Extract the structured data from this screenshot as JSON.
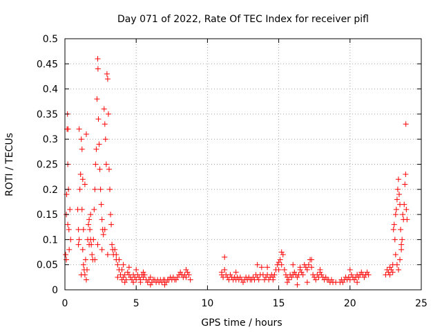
{
  "chart_data": {
    "type": "scatter",
    "title": "Day 071 of 2022, Rate Of TEC Index for receiver pifl",
    "xlabel": "GPS time / hours",
    "ylabel": "ROTI / TECUs",
    "xlim": [
      0,
      25
    ],
    "ylim": [
      0,
      0.5
    ],
    "x_ticks": [
      0,
      5,
      10,
      15,
      20,
      25
    ],
    "x_tick_labels": [
      "0",
      "5",
      "10",
      "15",
      "20",
      "25"
    ],
    "y_ticks": [
      0,
      0.05,
      0.1,
      0.15,
      0.2,
      0.25,
      0.3,
      0.35,
      0.4,
      0.45,
      0.5
    ],
    "y_tick_labels": [
      "0",
      "0.05",
      "0.1",
      "0.15",
      "0.2",
      "0.25",
      "0.3",
      "0.35",
      "0.4",
      "0.45",
      "0.5"
    ],
    "grid": true,
    "marker": "+",
    "color": "#ff0000",
    "series": [
      {
        "name": "ROTI",
        "points": [
          [
            0.05,
            0.07
          ],
          [
            0.1,
            0.15
          ],
          [
            0.12,
            0.19
          ],
          [
            0.15,
            0.32
          ],
          [
            0.18,
            0.35
          ],
          [
            0.2,
            0.25
          ],
          [
            0.22,
            0.32
          ],
          [
            0.25,
            0.2
          ],
          [
            0.28,
            0.12
          ],
          [
            0.3,
            0.08
          ],
          [
            0.35,
            0.16
          ],
          [
            0.4,
            0.1
          ],
          [
            0.1,
            0.06
          ],
          [
            0.2,
            0.13
          ],
          [
            0.9,
            0.16
          ],
          [
            0.95,
            0.12
          ],
          [
            1.0,
            0.1
          ],
          [
            1.05,
            0.2
          ],
          [
            1.1,
            0.23
          ],
          [
            1.15,
            0.3
          ],
          [
            1.2,
            0.16
          ],
          [
            1.25,
            0.08
          ],
          [
            1.3,
            0.05
          ],
          [
            1.35,
            0.04
          ],
          [
            1.4,
            0.03
          ],
          [
            1.45,
            0.06
          ],
          [
            1.5,
            0.02
          ],
          [
            1.55,
            0.04
          ],
          [
            1.6,
            0.1
          ],
          [
            1.65,
            0.13
          ],
          [
            1.7,
            0.14
          ],
          [
            1.75,
            0.12
          ],
          [
            1.8,
            0.1
          ],
          [
            1.85,
            0.09
          ],
          [
            1.9,
            0.07
          ],
          [
            1.95,
            0.06
          ],
          [
            2.0,
            0.1
          ],
          [
            2.05,
            0.16
          ],
          [
            2.1,
            0.2
          ],
          [
            2.15,
            0.25
          ],
          [
            2.2,
            0.28
          ],
          [
            2.25,
            0.38
          ],
          [
            2.3,
            0.46
          ],
          [
            2.32,
            0.44
          ],
          [
            2.35,
            0.34
          ],
          [
            2.4,
            0.29
          ],
          [
            2.45,
            0.24
          ],
          [
            2.5,
            0.2
          ],
          [
            2.55,
            0.17
          ],
          [
            2.6,
            0.14
          ],
          [
            2.65,
            0.12
          ],
          [
            2.7,
            0.11
          ],
          [
            2.75,
            0.36
          ],
          [
            2.8,
            0.33
          ],
          [
            2.85,
            0.3
          ],
          [
            2.9,
            0.25
          ],
          [
            2.95,
            0.43
          ],
          [
            3.0,
            0.42
          ],
          [
            3.05,
            0.35
          ],
          [
            3.1,
            0.24
          ],
          [
            3.15,
            0.2
          ],
          [
            3.2,
            0.15
          ],
          [
            3.25,
            0.13
          ],
          [
            3.3,
            0.09
          ],
          [
            3.35,
            0.08
          ],
          [
            3.4,
            0.07
          ],
          [
            3.5,
            0.08
          ],
          [
            3.6,
            0.06
          ],
          [
            3.7,
            0.05
          ],
          [
            3.8,
            0.04
          ],
          [
            1.0,
            0.32
          ],
          [
            1.2,
            0.28
          ],
          [
            1.4,
            0.21
          ],
          [
            1.5,
            0.31
          ],
          [
            2.1,
            0.06
          ],
          [
            2.3,
            0.09
          ],
          [
            1.7,
            0.09
          ],
          [
            1.8,
            0.15
          ],
          [
            2.6,
            0.08
          ],
          [
            2.8,
            0.12
          ],
          [
            3.0,
            0.07
          ],
          [
            1.3,
            0.12
          ],
          [
            0.95,
            0.09
          ],
          [
            1.15,
            0.03
          ],
          [
            1.25,
            0.22
          ],
          [
            3.9,
            0.03
          ],
          [
            4.0,
            0.04
          ],
          [
            4.1,
            0.025
          ],
          [
            4.2,
            0.03
          ],
          [
            4.3,
            0.02
          ],
          [
            4.4,
            0.035
          ],
          [
            4.5,
            0.03
          ],
          [
            4.6,
            0.025
          ],
          [
            4.7,
            0.02
          ],
          [
            4.8,
            0.03
          ],
          [
            4.9,
            0.025
          ],
          [
            5.0,
            0.02
          ],
          [
            5.1,
            0.03
          ],
          [
            5.2,
            0.025
          ],
          [
            5.3,
            0.02
          ],
          [
            5.4,
            0.03
          ],
          [
            5.5,
            0.025
          ],
          [
            5.6,
            0.03
          ],
          [
            5.7,
            0.02
          ],
          [
            5.8,
            0.015
          ],
          [
            5.9,
            0.02
          ],
          [
            6.0,
            0.025
          ],
          [
            6.1,
            0.015
          ],
          [
            6.2,
            0.02
          ],
          [
            6.3,
            0.02
          ],
          [
            6.4,
            0.015
          ],
          [
            6.5,
            0.02
          ],
          [
            6.6,
            0.015
          ],
          [
            6.7,
            0.02
          ],
          [
            6.8,
            0.015
          ],
          [
            6.9,
            0.02
          ],
          [
            7.0,
            0.02
          ],
          [
            7.1,
            0.015
          ],
          [
            7.2,
            0.02
          ],
          [
            7.3,
            0.02
          ],
          [
            7.4,
            0.025
          ],
          [
            7.5,
            0.02
          ],
          [
            7.6,
            0.025
          ],
          [
            7.7,
            0.02
          ],
          [
            7.8,
            0.02
          ],
          [
            7.9,
            0.025
          ],
          [
            8.0,
            0.03
          ],
          [
            8.1,
            0.035
          ],
          [
            8.2,
            0.03
          ],
          [
            8.3,
            0.025
          ],
          [
            8.4,
            0.03
          ],
          [
            8.5,
            0.04
          ],
          [
            8.6,
            0.035
          ],
          [
            8.7,
            0.03
          ],
          [
            8.8,
            0.02
          ],
          [
            4.0,
            0.02
          ],
          [
            4.5,
            0.045
          ],
          [
            5.0,
            0.04
          ],
          [
            5.5,
            0.035
          ],
          [
            4.2,
            0.015
          ],
          [
            4.8,
            0.015
          ],
          [
            5.3,
            0.015
          ],
          [
            6.0,
            0.01
          ],
          [
            7.0,
            0.01
          ],
          [
            8.5,
            0.025
          ],
          [
            3.8,
            0.06
          ],
          [
            3.6,
            0.07
          ],
          [
            3.7,
            0.025
          ],
          [
            4.1,
            0.05
          ],
          [
            11.0,
            0.03
          ],
          [
            11.1,
            0.025
          ],
          [
            11.2,
            0.04
          ],
          [
            11.3,
            0.03
          ],
          [
            11.4,
            0.025
          ],
          [
            11.5,
            0.02
          ],
          [
            11.6,
            0.03
          ],
          [
            11.7,
            0.025
          ],
          [
            11.8,
            0.02
          ],
          [
            11.9,
            0.025
          ],
          [
            12.0,
            0.02
          ],
          [
            12.1,
            0.025
          ],
          [
            12.2,
            0.02
          ],
          [
            12.3,
            0.025
          ],
          [
            12.4,
            0.02
          ],
          [
            12.5,
            0.015
          ],
          [
            12.6,
            0.02
          ],
          [
            12.7,
            0.025
          ],
          [
            12.8,
            0.02
          ],
          [
            12.9,
            0.025
          ],
          [
            13.0,
            0.02
          ],
          [
            13.1,
            0.02
          ],
          [
            13.2,
            0.025
          ],
          [
            13.3,
            0.02
          ],
          [
            13.4,
            0.03
          ],
          [
            13.5,
            0.025
          ],
          [
            13.6,
            0.02
          ],
          [
            13.7,
            0.03
          ],
          [
            13.8,
            0.045
          ],
          [
            13.9,
            0.03
          ],
          [
            14.0,
            0.02
          ],
          [
            14.1,
            0.025
          ],
          [
            14.2,
            0.03
          ],
          [
            14.3,
            0.02
          ],
          [
            14.4,
            0.025
          ],
          [
            14.5,
            0.03
          ],
          [
            14.6,
            0.025
          ],
          [
            14.7,
            0.03
          ],
          [
            14.8,
            0.04
          ],
          [
            14.9,
            0.05
          ],
          [
            15.0,
            0.04
          ],
          [
            15.1,
            0.06
          ],
          [
            15.2,
            0.05
          ],
          [
            15.3,
            0.07
          ],
          [
            15.4,
            0.04
          ],
          [
            15.5,
            0.03
          ],
          [
            15.6,
            0.025
          ],
          [
            15.7,
            0.02
          ],
          [
            15.8,
            0.03
          ],
          [
            15.9,
            0.025
          ],
          [
            16.0,
            0.03
          ],
          [
            16.1,
            0.035
          ],
          [
            16.2,
            0.03
          ],
          [
            16.3,
            0.025
          ],
          [
            16.4,
            0.03
          ],
          [
            16.5,
            0.04
          ],
          [
            16.6,
            0.035
          ],
          [
            16.7,
            0.03
          ],
          [
            16.8,
            0.05
          ],
          [
            16.9,
            0.045
          ],
          [
            17.0,
            0.04
          ],
          [
            17.1,
            0.05
          ],
          [
            17.2,
            0.06
          ],
          [
            17.3,
            0.045
          ],
          [
            17.4,
            0.03
          ],
          [
            17.5,
            0.025
          ],
          [
            17.6,
            0.02
          ],
          [
            17.7,
            0.03
          ],
          [
            17.8,
            0.025
          ],
          [
            17.9,
            0.04
          ],
          [
            18.0,
            0.03
          ],
          [
            18.1,
            0.025
          ],
          [
            18.2,
            0.02
          ],
          [
            18.3,
            0.025
          ],
          [
            18.4,
            0.02
          ],
          [
            18.5,
            0.02
          ],
          [
            18.6,
            0.015
          ],
          [
            18.7,
            0.02
          ],
          [
            18.8,
            0.015
          ],
          [
            19.0,
            0.015
          ],
          [
            11.2,
            0.065
          ],
          [
            11.0,
            0.035
          ],
          [
            13.5,
            0.05
          ],
          [
            14.2,
            0.045
          ],
          [
            15.2,
            0.075
          ],
          [
            15.0,
            0.055
          ],
          [
            16.0,
            0.05
          ],
          [
            16.5,
            0.045
          ],
          [
            17.3,
            0.06
          ],
          [
            17.9,
            0.035
          ],
          [
            12.0,
            0.035
          ],
          [
            14.6,
            0.02
          ],
          [
            15.6,
            0.015
          ],
          [
            16.3,
            0.01
          ],
          [
            17.0,
            0.015
          ],
          [
            19.3,
            0.015
          ],
          [
            19.4,
            0.02
          ],
          [
            19.5,
            0.015
          ],
          [
            19.6,
            0.02
          ],
          [
            19.7,
            0.025
          ],
          [
            19.8,
            0.02
          ],
          [
            19.9,
            0.025
          ],
          [
            20.0,
            0.02
          ],
          [
            20.1,
            0.03
          ],
          [
            20.2,
            0.025
          ],
          [
            20.3,
            0.02
          ],
          [
            20.4,
            0.025
          ],
          [
            20.5,
            0.03
          ],
          [
            20.6,
            0.025
          ],
          [
            20.7,
            0.03
          ],
          [
            20.8,
            0.035
          ],
          [
            20.9,
            0.03
          ],
          [
            21.0,
            0.025
          ],
          [
            21.1,
            0.03
          ],
          [
            21.2,
            0.035
          ],
          [
            21.3,
            0.03
          ],
          [
            20.0,
            0.04
          ],
          [
            20.5,
            0.015
          ],
          [
            22.5,
            0.03
          ],
          [
            22.6,
            0.04
          ],
          [
            22.7,
            0.035
          ],
          [
            22.8,
            0.03
          ],
          [
            22.9,
            0.04
          ],
          [
            23.0,
            0.05
          ],
          [
            23.05,
            0.12
          ],
          [
            23.1,
            0.13
          ],
          [
            23.15,
            0.1
          ],
          [
            23.2,
            0.15
          ],
          [
            23.25,
            0.16
          ],
          [
            23.3,
            0.18
          ],
          [
            23.35,
            0.2
          ],
          [
            23.4,
            0.22
          ],
          [
            23.45,
            0.19
          ],
          [
            23.5,
            0.17
          ],
          [
            23.55,
            0.12
          ],
          [
            23.6,
            0.09
          ],
          [
            23.65,
            0.1
          ],
          [
            23.7,
            0.15
          ],
          [
            23.75,
            0.14
          ],
          [
            23.8,
            0.17
          ],
          [
            23.85,
            0.21
          ],
          [
            23.9,
            0.23
          ],
          [
            23.92,
            0.33
          ],
          [
            23.95,
            0.16
          ],
          [
            24.0,
            0.14
          ],
          [
            23.0,
            0.035
          ],
          [
            23.3,
            0.05
          ],
          [
            23.5,
            0.06
          ],
          [
            23.2,
            0.07
          ],
          [
            22.8,
            0.045
          ],
          [
            23.6,
            0.08
          ],
          [
            23.4,
            0.04
          ]
        ]
      }
    ]
  }
}
